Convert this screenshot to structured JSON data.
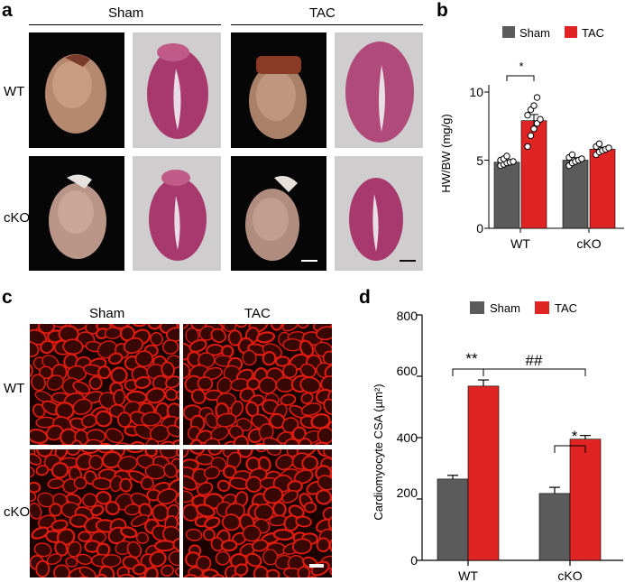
{
  "panels": {
    "a": {
      "label": "a",
      "col_labels": [
        "Sham",
        "TAC"
      ],
      "row_labels": [
        "WT",
        "cKO"
      ]
    },
    "b": {
      "label": "b",
      "legend": [
        "Sham",
        "TAC"
      ],
      "ylabel": "HW/BW (mg/g)",
      "yticks": [
        "0",
        "5",
        "10"
      ],
      "xticks": [
        "WT",
        "cKO"
      ],
      "sig": "*"
    },
    "c": {
      "label": "c",
      "col_labels": [
        "Sham",
        "TAC"
      ],
      "row_labels": [
        "WT",
        "cKO"
      ]
    },
    "d": {
      "label": "d",
      "legend": [
        "Sham",
        "TAC"
      ],
      "ylabel": "Cardiomyocyte CSA (µm²)",
      "yticks": [
        "0",
        "200",
        "400",
        "600",
        "800"
      ],
      "xticks": [
        "WT",
        "cKO"
      ],
      "sig_wt": "**",
      "sig_between": "##",
      "sig_cko": "*"
    }
  },
  "colors": {
    "sham": "#5b5b5b",
    "tac": "#e02424",
    "fluor": "#e01c10"
  },
  "chart_data": [
    {
      "id": "b",
      "type": "bar",
      "categories": [
        "WT",
        "cKO"
      ],
      "ylabel": "HW/BW (mg/g)",
      "ylim": [
        0,
        10
      ],
      "yticks": [
        0,
        5,
        10
      ],
      "series": [
        {
          "name": "Sham",
          "values": [
            4.85,
            5.0
          ],
          "errors": [
            0.15,
            0.18
          ],
          "points": [
            [
              4.6,
              4.7,
              4.8,
              4.85,
              4.9,
              5.0,
              5.1,
              5.3
            ],
            [
              4.6,
              4.8,
              4.9,
              5.0,
              5.1,
              5.2,
              5.4
            ]
          ]
        },
        {
          "name": "TAC",
          "values": [
            7.9,
            5.8
          ],
          "errors": [
            0.45,
            0.15
          ],
          "points": [
            [
              6.0,
              6.8,
              7.3,
              7.7,
              8.0,
              8.3,
              8.7,
              9.0,
              9.6
            ],
            [
              5.4,
              5.6,
              5.7,
              5.8,
              5.9,
              6.0,
              6.2
            ]
          ]
        }
      ],
      "annotation": "*"
    },
    {
      "id": "d",
      "type": "bar",
      "categories": [
        "WT",
        "cKO"
      ],
      "ylabel": "Cardiomyocyte CSA (µm²)",
      "ylim": [
        0,
        800
      ],
      "yticks": [
        0,
        200,
        400,
        600,
        800
      ],
      "series": [
        {
          "name": "Sham",
          "values": [
            265,
            218
          ],
          "errors": [
            12,
            20
          ]
        },
        {
          "name": "TAC",
          "values": [
            568,
            395
          ],
          "errors": [
            20,
            12
          ]
        }
      ],
      "annotations": [
        "**",
        "##",
        "*"
      ]
    }
  ]
}
